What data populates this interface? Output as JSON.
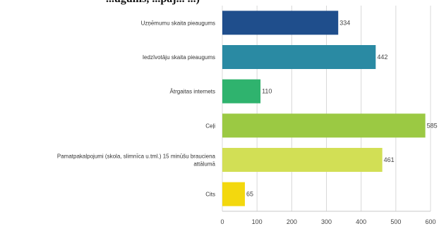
{
  "header_fragment": "...ugums, ...paj... ...)",
  "chart_data": {
    "type": "bar",
    "orientation": "horizontal",
    "categories": [
      "Uzņēmumu skaita pieaugums",
      "Iedzīvotāju skaita pieaugums",
      "Ātrgaitas internets",
      "Ceļi",
      "Pamatpakalpojumi (skola, slimnīca u.tml.) 15 minūšu brauciena attālumā",
      "Cits"
    ],
    "values": [
      334,
      442,
      110,
      585,
      461,
      65
    ],
    "colors": [
      "#1f4e8c",
      "#2a8aa3",
      "#2fb36e",
      "#9bc943",
      "#d2df55",
      "#f3d80e"
    ],
    "xlim": [
      0,
      600
    ],
    "xticks": [
      0,
      100,
      200,
      300,
      400,
      500,
      600
    ],
    "grid": true,
    "title": "",
    "xlabel": "",
    "ylabel": ""
  }
}
